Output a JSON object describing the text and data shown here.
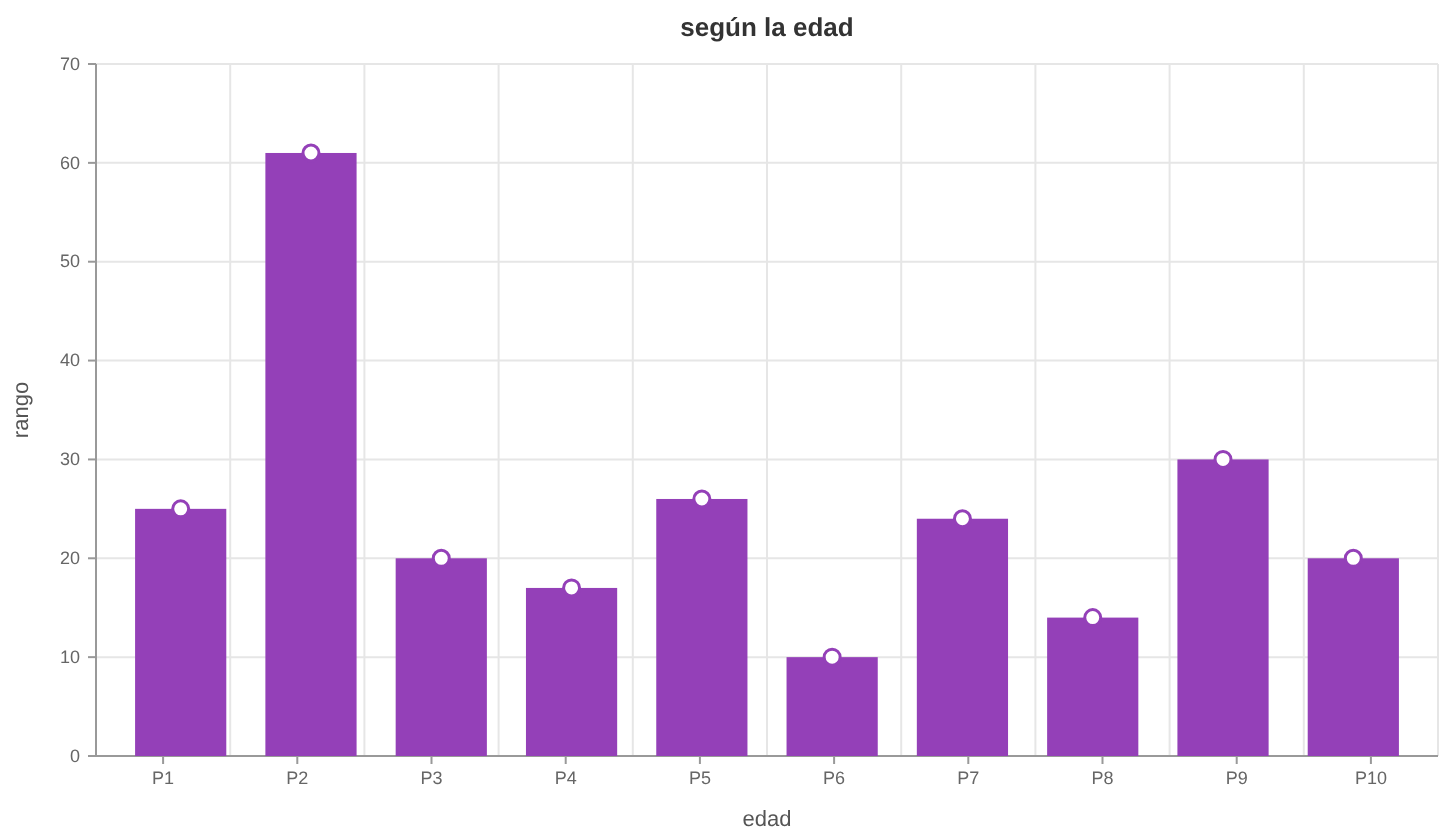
{
  "chart_data": {
    "type": "bar",
    "title": "según la edad",
    "xlabel": "edad",
    "ylabel": "rango",
    "categories": [
      "P1",
      "P2",
      "P3",
      "P4",
      "P5",
      "P6",
      "P7",
      "P8",
      "P9",
      "P10"
    ],
    "series": [
      {
        "color": "#9440b8",
        "values": [
          25,
          61,
          20,
          17,
          26,
          10,
          24,
          14,
          30,
          20
        ]
      },
      {
        "type": "scatter",
        "color": "#ffffff",
        "x": [
          "P1",
          "P2",
          "P3",
          "P4",
          "P5",
          "P6",
          "P7",
          "P8",
          "P9",
          "P10"
        ],
        "values": [
          25,
          61,
          20,
          17,
          26,
          10,
          24,
          14,
          30,
          20
        ],
        "marker": "circle"
      }
    ],
    "ylim": [
      0,
      70
    ],
    "yticks": [
      0,
      10,
      20,
      30,
      40,
      50,
      60,
      70
    ],
    "grid": true
  }
}
